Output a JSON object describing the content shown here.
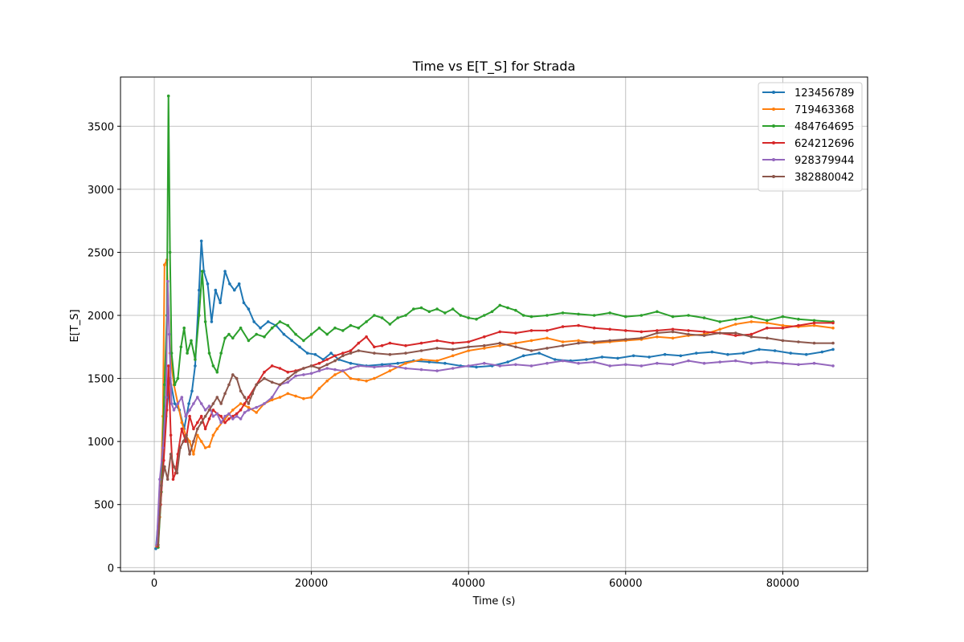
{
  "chart_data": {
    "type": "line",
    "title": "Time vs E[T_S] for Strada",
    "xlabel": "Time (s)",
    "ylabel": "E[T_S]",
    "xlim": [
      -4300,
      90800
    ],
    "ylim": [
      -30,
      3890
    ],
    "xticks": [
      0,
      20000,
      40000,
      60000,
      80000
    ],
    "yticks": [
      0,
      500,
      1000,
      1500,
      2000,
      2500,
      3000,
      3500
    ],
    "grid": true,
    "legend_position": "top-right",
    "series": [
      {
        "name": "123456789",
        "color": "#1f77b4",
        "x": [
          200,
          600,
          1000,
          1500,
          2000,
          2600,
          3200,
          3800,
          4400,
          4800,
          5200,
          5700,
          6000,
          6300,
          6800,
          7300,
          7800,
          8400,
          9000,
          9600,
          10200,
          10800,
          11400,
          12000,
          12700,
          13500,
          14500,
          15500,
          16500,
          17500,
          18500,
          19500,
          20500,
          21500,
          22500,
          23500,
          25000,
          27000,
          29000,
          31000,
          33000,
          35000,
          37000,
          39000,
          41000,
          43000,
          45000,
          47000,
          49000,
          51000,
          53000,
          55000,
          57000,
          59000,
          61000,
          63000,
          65000,
          67000,
          69000,
          71000,
          73000,
          75000,
          77000,
          79000,
          81000,
          83000,
          85000,
          86400
        ],
        "y": [
          150,
          450,
          800,
          1200,
          1500,
          1300,
          1250,
          1100,
          1300,
          1400,
          1600,
          2200,
          2590,
          2350,
          2250,
          1950,
          2200,
          2100,
          2350,
          2250,
          2200,
          2250,
          2100,
          2050,
          1950,
          1900,
          1950,
          1920,
          1850,
          1800,
          1750,
          1700,
          1690,
          1650,
          1700,
          1650,
          1620,
          1600,
          1610,
          1620,
          1640,
          1630,
          1620,
          1600,
          1590,
          1600,
          1630,
          1680,
          1700,
          1650,
          1640,
          1650,
          1670,
          1660,
          1680,
          1670,
          1690,
          1680,
          1700,
          1710,
          1690,
          1700,
          1730,
          1720,
          1700,
          1690,
          1710,
          1730
        ]
      },
      {
        "name": "719463368",
        "color": "#ff7f0e",
        "x": [
          300,
          700,
          1100,
          1300,
          1600,
          2000,
          2500,
          3000,
          3500,
          4000,
          4500,
          5000,
          5500,
          6000,
          6500,
          7000,
          7500,
          8000,
          9000,
          10000,
          11000,
          12000,
          13000,
          14000,
          15000,
          16000,
          17000,
          18000,
          19000,
          20000,
          21000,
          22000,
          23000,
          24000,
          25000,
          26000,
          27000,
          28000,
          30000,
          32000,
          34000,
          36000,
          38000,
          40000,
          42000,
          44000,
          46000,
          48000,
          50000,
          52000,
          54000,
          56000,
          58000,
          60000,
          62000,
          64000,
          66000,
          68000,
          70000,
          72000,
          74000,
          76000,
          78000,
          80000,
          82000,
          84000,
          86400
        ],
        "y": [
          170,
          400,
          1200,
          2400,
          2440,
          1700,
          1450,
          1300,
          1150,
          1050,
          1000,
          900,
          1050,
          1000,
          950,
          960,
          1050,
          1100,
          1180,
          1250,
          1300,
          1270,
          1230,
          1300,
          1330,
          1350,
          1380,
          1360,
          1340,
          1350,
          1420,
          1480,
          1530,
          1560,
          1500,
          1490,
          1480,
          1500,
          1560,
          1620,
          1650,
          1640,
          1680,
          1720,
          1740,
          1760,
          1780,
          1800,
          1820,
          1790,
          1800,
          1780,
          1790,
          1800,
          1810,
          1830,
          1820,
          1840,
          1850,
          1890,
          1930,
          1950,
          1940,
          1920,
          1910,
          1920,
          1900
        ]
      },
      {
        "name": "484764695",
        "color": "#2ca02c",
        "x": [
          500,
          900,
          1300,
          1600,
          1800,
          2000,
          2200,
          2600,
          3000,
          3400,
          3800,
          4200,
          4700,
          5200,
          5700,
          6100,
          6500,
          7000,
          7500,
          8000,
          8500,
          9000,
          9500,
          10000,
          11000,
          12000,
          13000,
          14000,
          15000,
          16000,
          17000,
          18000,
          19000,
          20000,
          21000,
          22000,
          23000,
          24000,
          25000,
          26000,
          27000,
          28000,
          29000,
          30000,
          31000,
          32000,
          33000,
          34000,
          35000,
          36000,
          37000,
          38000,
          39000,
          40000,
          41000,
          42000,
          43000,
          44000,
          45000,
          46000,
          47000,
          48000,
          50000,
          52000,
          54000,
          56000,
          58000,
          60000,
          62000,
          64000,
          66000,
          68000,
          70000,
          72000,
          74000,
          76000,
          78000,
          80000,
          82000,
          84000,
          86400
        ],
        "y": [
          160,
          600,
          1450,
          2000,
          3740,
          2500,
          1700,
          1450,
          1500,
          1750,
          1900,
          1700,
          1800,
          1650,
          2000,
          2350,
          1950,
          1700,
          1600,
          1550,
          1700,
          1820,
          1850,
          1820,
          1900,
          1800,
          1850,
          1830,
          1900,
          1950,
          1920,
          1850,
          1800,
          1850,
          1900,
          1850,
          1900,
          1880,
          1920,
          1900,
          1950,
          2000,
          1980,
          1930,
          1980,
          2000,
          2050,
          2060,
          2030,
          2050,
          2020,
          2050,
          2000,
          1980,
          1970,
          2000,
          2030,
          2080,
          2060,
          2040,
          2000,
          1990,
          2000,
          2020,
          2010,
          2000,
          2020,
          1990,
          2000,
          2030,
          1990,
          2000,
          1980,
          1950,
          1970,
          1990,
          1960,
          1990,
          1970,
          1960,
          1950
        ]
      },
      {
        "name": "624212696",
        "color": "#d62728",
        "x": [
          400,
          800,
          1200,
          1600,
          1800,
          2100,
          2400,
          2700,
          3000,
          3500,
          4000,
          4500,
          5000,
          5500,
          6000,
          6500,
          7000,
          7500,
          8000,
          8500,
          9000,
          9500,
          10000,
          10500,
          11000,
          11500,
          12000,
          13000,
          14000,
          15000,
          16000,
          17000,
          18000,
          19000,
          20000,
          21000,
          22000,
          23000,
          24000,
          25000,
          26000,
          27000,
          28000,
          29000,
          30000,
          32000,
          34000,
          36000,
          38000,
          40000,
          42000,
          44000,
          46000,
          48000,
          50000,
          52000,
          54000,
          56000,
          58000,
          60000,
          62000,
          64000,
          66000,
          68000,
          70000,
          72000,
          74000,
          76000,
          78000,
          80000,
          82000,
          84000,
          86400
        ],
        "y": [
          170,
          500,
          850,
          1250,
          1600,
          1050,
          700,
          750,
          900,
          1100,
          1000,
          1200,
          1100,
          1150,
          1200,
          1100,
          1180,
          1250,
          1220,
          1200,
          1150,
          1180,
          1200,
          1220,
          1250,
          1300,
          1350,
          1450,
          1550,
          1600,
          1580,
          1550,
          1560,
          1580,
          1600,
          1620,
          1650,
          1680,
          1700,
          1720,
          1780,
          1830,
          1750,
          1760,
          1780,
          1760,
          1780,
          1800,
          1780,
          1790,
          1830,
          1870,
          1860,
          1880,
          1880,
          1910,
          1920,
          1900,
          1890,
          1880,
          1870,
          1880,
          1890,
          1880,
          1870,
          1860,
          1840,
          1850,
          1900,
          1900,
          1920,
          1940,
          1940
        ]
      },
      {
        "name": "928379944",
        "color": "#9467bd",
        "x": [
          300,
          700,
          1100,
          1500,
          1700,
          1900,
          2200,
          2500,
          3000,
          3500,
          4000,
          4500,
          5000,
          5500,
          6000,
          6500,
          7000,
          7500,
          8000,
          8500,
          9000,
          9500,
          10000,
          10500,
          11000,
          11500,
          12000,
          13000,
          14000,
          15000,
          16000,
          17000,
          18000,
          19000,
          20000,
          21000,
          22000,
          23000,
          24000,
          25000,
          26000,
          28000,
          30000,
          32000,
          34000,
          36000,
          38000,
          40000,
          42000,
          44000,
          46000,
          48000,
          50000,
          52000,
          54000,
          56000,
          58000,
          60000,
          62000,
          64000,
          66000,
          68000,
          70000,
          72000,
          74000,
          76000,
          78000,
          80000,
          82000,
          84000,
          86400
        ],
        "y": [
          180,
          700,
          950,
          1350,
          2270,
          1850,
          1300,
          1250,
          1300,
          1350,
          1200,
          1250,
          1300,
          1350,
          1300,
          1250,
          1280,
          1200,
          1220,
          1150,
          1200,
          1220,
          1180,
          1200,
          1180,
          1230,
          1250,
          1270,
          1300,
          1350,
          1450,
          1470,
          1520,
          1530,
          1540,
          1560,
          1580,
          1570,
          1560,
          1580,
          1600,
          1590,
          1600,
          1580,
          1570,
          1560,
          1580,
          1600,
          1620,
          1600,
          1610,
          1600,
          1620,
          1640,
          1620,
          1630,
          1600,
          1610,
          1600,
          1620,
          1610,
          1640,
          1620,
          1630,
          1640,
          1620,
          1630,
          1620,
          1610,
          1620,
          1600
        ]
      },
      {
        "name": "382880042",
        "color": "#8c564b",
        "x": [
          500,
          900,
          1300,
          1700,
          2100,
          2500,
          2900,
          3300,
          3700,
          4100,
          4500,
          5000,
          5500,
          6000,
          6500,
          7000,
          7500,
          8000,
          8500,
          9000,
          9500,
          10000,
          10500,
          11000,
          11500,
          12000,
          12500,
          13000,
          14000,
          15000,
          16000,
          17000,
          18000,
          19000,
          20000,
          21000,
          22000,
          23000,
          24000,
          25000,
          26000,
          28000,
          30000,
          32000,
          34000,
          36000,
          38000,
          40000,
          42000,
          44000,
          46000,
          48000,
          50000,
          52000,
          54000,
          56000,
          58000,
          60000,
          62000,
          64000,
          66000,
          68000,
          70000,
          72000,
          74000,
          76000,
          78000,
          80000,
          82000,
          84000,
          86400
        ],
        "y": [
          180,
          650,
          800,
          700,
          900,
          800,
          750,
          950,
          1000,
          1050,
          900,
          1000,
          1100,
          1150,
          1200,
          1250,
          1300,
          1350,
          1300,
          1380,
          1450,
          1530,
          1500,
          1400,
          1350,
          1300,
          1380,
          1450,
          1500,
          1470,
          1450,
          1500,
          1550,
          1580,
          1600,
          1580,
          1610,
          1640,
          1680,
          1700,
          1720,
          1700,
          1690,
          1700,
          1720,
          1740,
          1730,
          1750,
          1760,
          1780,
          1750,
          1720,
          1740,
          1760,
          1780,
          1790,
          1800,
          1810,
          1820,
          1860,
          1870,
          1850,
          1840,
          1860,
          1860,
          1830,
          1820,
          1800,
          1790,
          1780,
          1780
        ]
      }
    ]
  }
}
